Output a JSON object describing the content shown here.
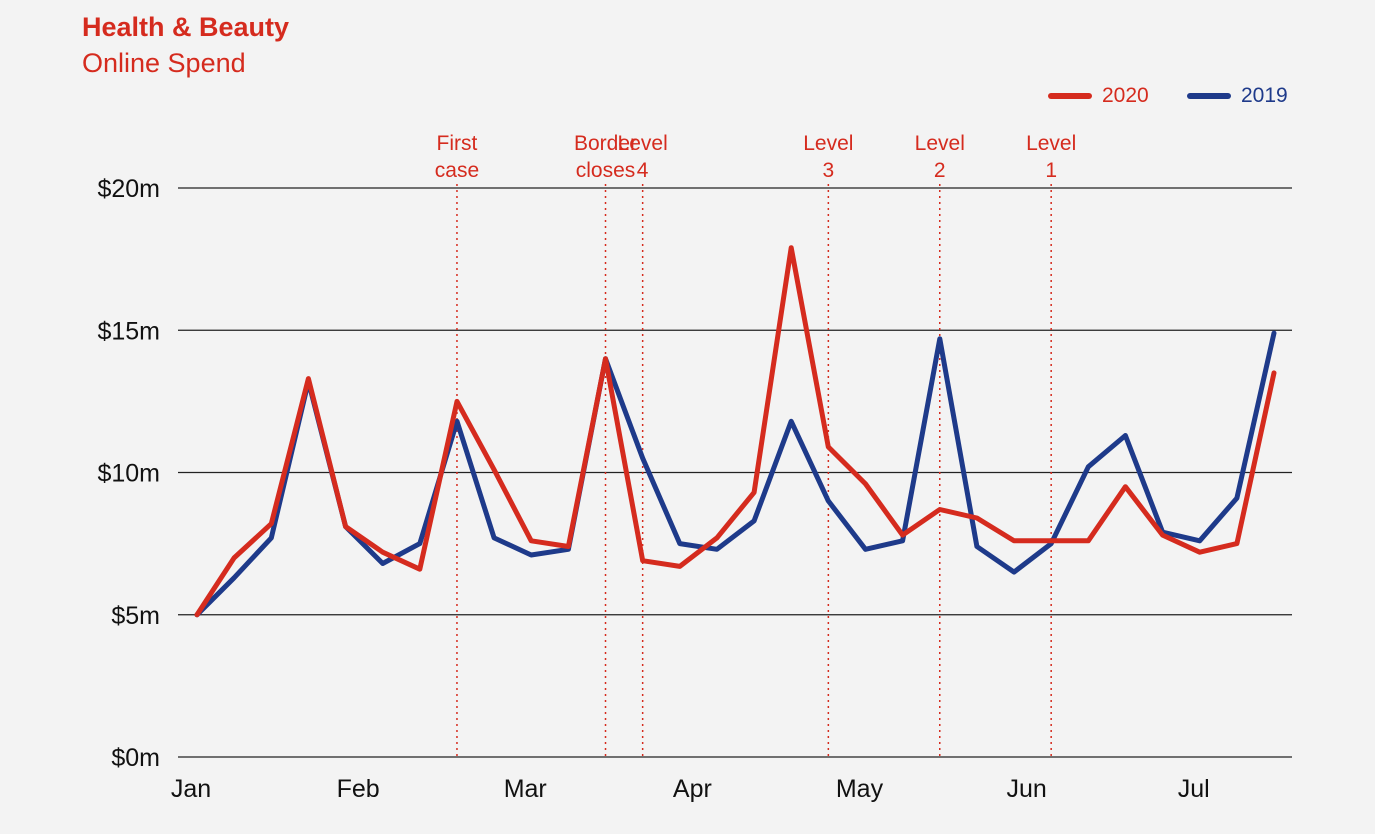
{
  "chart_data": {
    "type": "line",
    "title": "Health & Beauty",
    "subtitle": "Online Spend",
    "xlabel": "",
    "ylabel": "",
    "ylim": [
      0,
      20
    ],
    "yticks": [
      {
        "value": 0,
        "label": "$0m"
      },
      {
        "value": 5,
        "label": "$5m"
      },
      {
        "value": 10,
        "label": "$10m"
      },
      {
        "value": 15,
        "label": "$15m"
      },
      {
        "value": 20,
        "label": "$20m"
      }
    ],
    "xlim": [
      0,
      29.5
    ],
    "xticks": [
      {
        "x": 0,
        "label": "Jan"
      },
      {
        "x": 4.5,
        "label": "Feb"
      },
      {
        "x": 9,
        "label": "Mar"
      },
      {
        "x": 13.5,
        "label": "Apr"
      },
      {
        "x": 18,
        "label": "May"
      },
      {
        "x": 22.5,
        "label": "Jun"
      },
      {
        "x": 27,
        "label": "Jul"
      }
    ],
    "grid": true,
    "legend_position": "top-right",
    "series": [
      {
        "name": "2020",
        "color": "#d52b1e",
        "values": [
          5.0,
          7.0,
          8.2,
          13.3,
          8.1,
          7.2,
          6.6,
          12.5,
          10.1,
          7.6,
          7.4,
          14.0,
          6.9,
          6.7,
          7.7,
          9.3,
          17.9,
          10.9,
          9.6,
          7.8,
          8.7,
          8.4,
          7.6,
          7.6,
          7.6,
          9.5,
          7.8,
          7.2,
          7.5,
          13.5
        ]
      },
      {
        "name": "2019",
        "color": "#1e3a8a",
        "values": [
          5.0,
          6.3,
          7.7,
          13.2,
          8.1,
          6.8,
          7.5,
          11.8,
          7.7,
          7.1,
          7.3,
          14.0,
          10.5,
          7.5,
          7.3,
          8.3,
          11.8,
          9.0,
          7.3,
          7.6,
          14.7,
          7.4,
          6.5,
          7.5,
          10.2,
          11.3,
          7.9,
          7.6,
          9.1,
          14.9
        ]
      }
    ],
    "annotations": [
      {
        "x": 7.0,
        "lines": [
          "First",
          "case"
        ]
      },
      {
        "x": 11.0,
        "lines": [
          "Border",
          "closes"
        ]
      },
      {
        "x": 12.0,
        "lines": [
          "Level",
          "4"
        ]
      },
      {
        "x": 17.0,
        "lines": [
          "Level",
          "3"
        ]
      },
      {
        "x": 20.0,
        "lines": [
          "Level",
          "2"
        ]
      },
      {
        "x": 23.0,
        "lines": [
          "Level",
          "1"
        ]
      }
    ]
  }
}
